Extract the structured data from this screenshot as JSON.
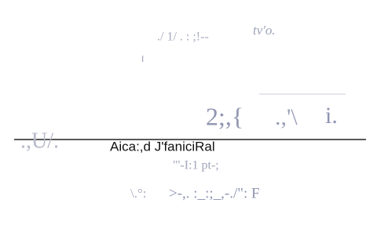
{
  "fragments": {
    "top_left": "./ 1/ . : ;!--",
    "top_right": "tv'o.",
    "small_mark": "I",
    "big_left": ".,U/.",
    "big_mid": "2;,{",
    "big_bracket": ".,'\\",
    "big_right": "i.",
    "caption": "Aica:,d J'faniciRal",
    "under_caption": "\"'-I:1 pt-;",
    "lower": ">-,. :_:;_,-./\": F",
    "lower_left": "\\.°:"
  }
}
